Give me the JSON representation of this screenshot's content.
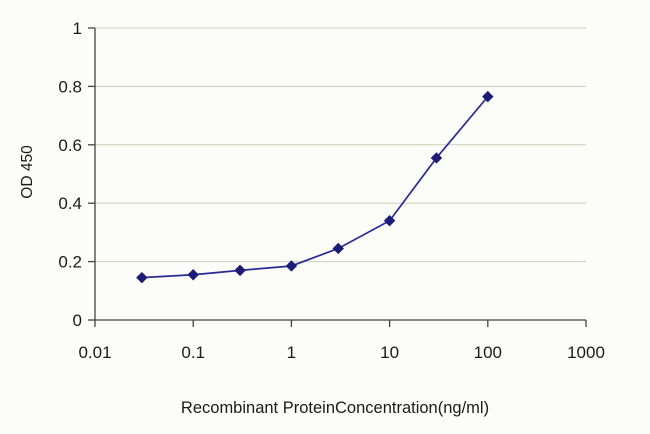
{
  "chart_data": {
    "type": "line",
    "title": "",
    "xlabel": "Recombinant ProteinConcentration(ng/ml)",
    "ylabel": "OD 450",
    "x_scale": "log",
    "xlim": [
      0.01,
      1000
    ],
    "ylim": [
      0,
      1
    ],
    "x": [
      0.03,
      0.1,
      0.3,
      1,
      3,
      10,
      30,
      100
    ],
    "values": [
      0.145,
      0.155,
      0.17,
      0.185,
      0.245,
      0.34,
      0.555,
      0.765
    ],
    "x_ticks": [
      "0.01",
      "0.1",
      "1",
      "10",
      "100",
      "1000"
    ],
    "x_tick_values": [
      0.01,
      0.1,
      1,
      10,
      100,
      1000
    ],
    "y_ticks": [
      "0",
      "0.2",
      "0.4",
      "0.6",
      "0.8",
      "1"
    ],
    "y_tick_values": [
      0,
      0.2,
      0.4,
      0.6,
      0.8,
      1
    ],
    "grid": true,
    "legend_position": "none",
    "marker": "diamond",
    "colors": {
      "line": "#2a2a96",
      "marker": "#1c1c78",
      "grid": "#cfcfbc",
      "axis": "#44443e",
      "background": "#fcfcf8"
    }
  }
}
